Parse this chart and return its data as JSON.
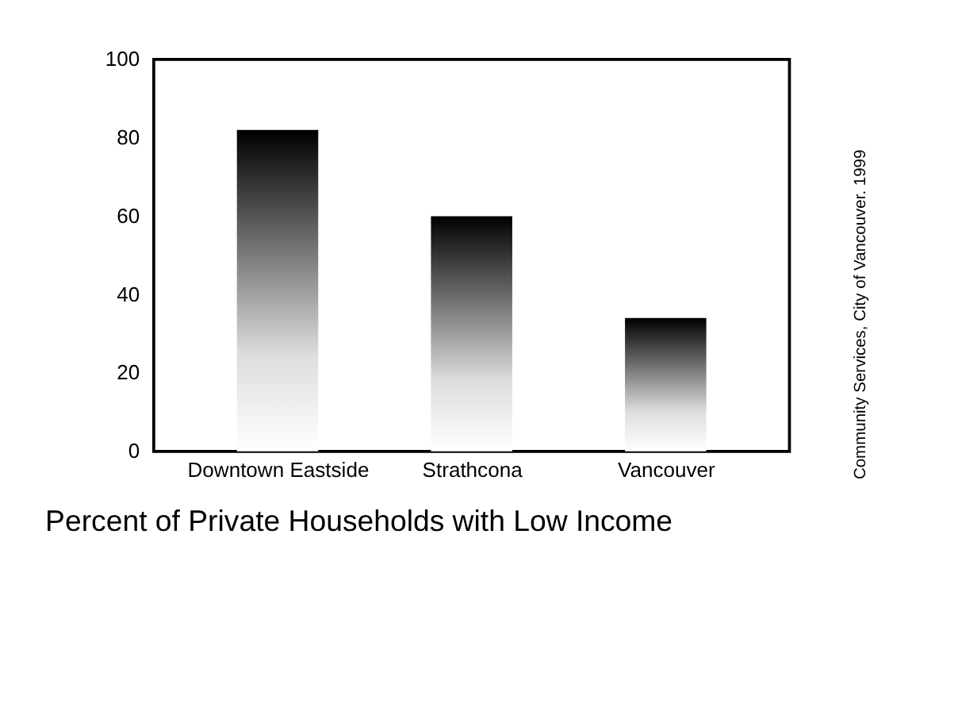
{
  "chart_data": {
    "type": "bar",
    "title": "Percent of Private Households with Low Income",
    "categories": [
      "Downtown Eastside",
      "Strathcona",
      "Vancouver"
    ],
    "values": [
      82,
      60,
      34
    ],
    "color": "#000000",
    "ylim": [
      0,
      100
    ],
    "yticks": [
      0,
      20,
      40,
      60,
      80,
      100
    ],
    "grid": false,
    "annotations": [
      "Community Services, City of Vancouver. 1999"
    ]
  }
}
